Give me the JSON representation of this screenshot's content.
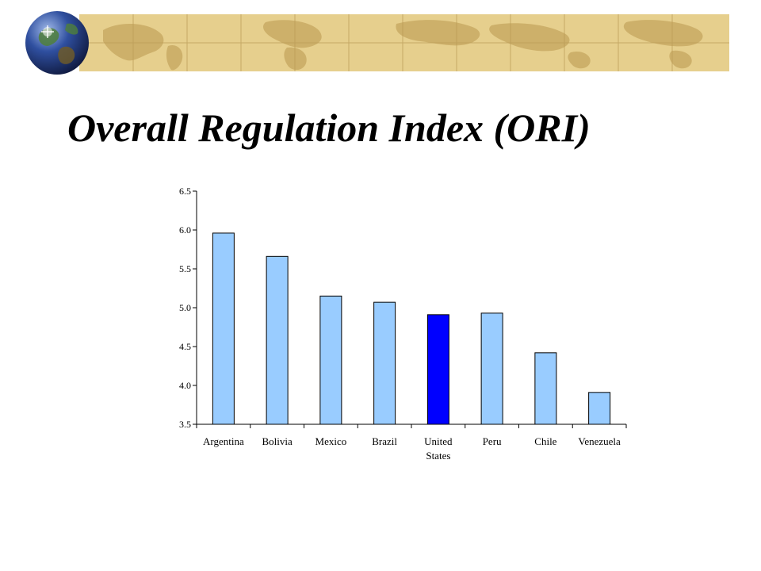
{
  "slide": {
    "title": "Overall Regulation Index (ORI)"
  },
  "chart_data": {
    "type": "bar",
    "title": "",
    "xlabel": "",
    "ylabel": "",
    "categories": [
      "Argentina",
      "Bolivia",
      "Mexico",
      "Brazil",
      "United States",
      "Peru",
      "Chile",
      "Venezuela"
    ],
    "category_labels": [
      [
        "Argentina"
      ],
      [
        "Bolivia"
      ],
      [
        "Mexico"
      ],
      [
        "Brazil"
      ],
      [
        "United",
        "States"
      ],
      [
        "Peru"
      ],
      [
        "Chile"
      ],
      [
        "Venezuela"
      ]
    ],
    "values": [
      5.96,
      5.66,
      5.15,
      5.07,
      4.91,
      4.93,
      4.42,
      3.91
    ],
    "ylim": [
      3.5,
      6.5
    ],
    "yticks": [
      "3.5",
      "4.0",
      "4.5",
      "5.0",
      "5.5",
      "6.0",
      "6.5"
    ],
    "grid": false,
    "bar_color": "#99ccff",
    "highlight_color": "#0000ff",
    "highlight_category": "United States"
  },
  "colors": {
    "banner": "#e6cf8d",
    "banner_land": "#cdb06a",
    "banner_grid": "#b89a55",
    "globe_ocean": "#2f4f9f",
    "globe_land": "#4f7f3a"
  },
  "icons": {
    "globe": "globe-icon",
    "banner": "world-map-banner"
  }
}
